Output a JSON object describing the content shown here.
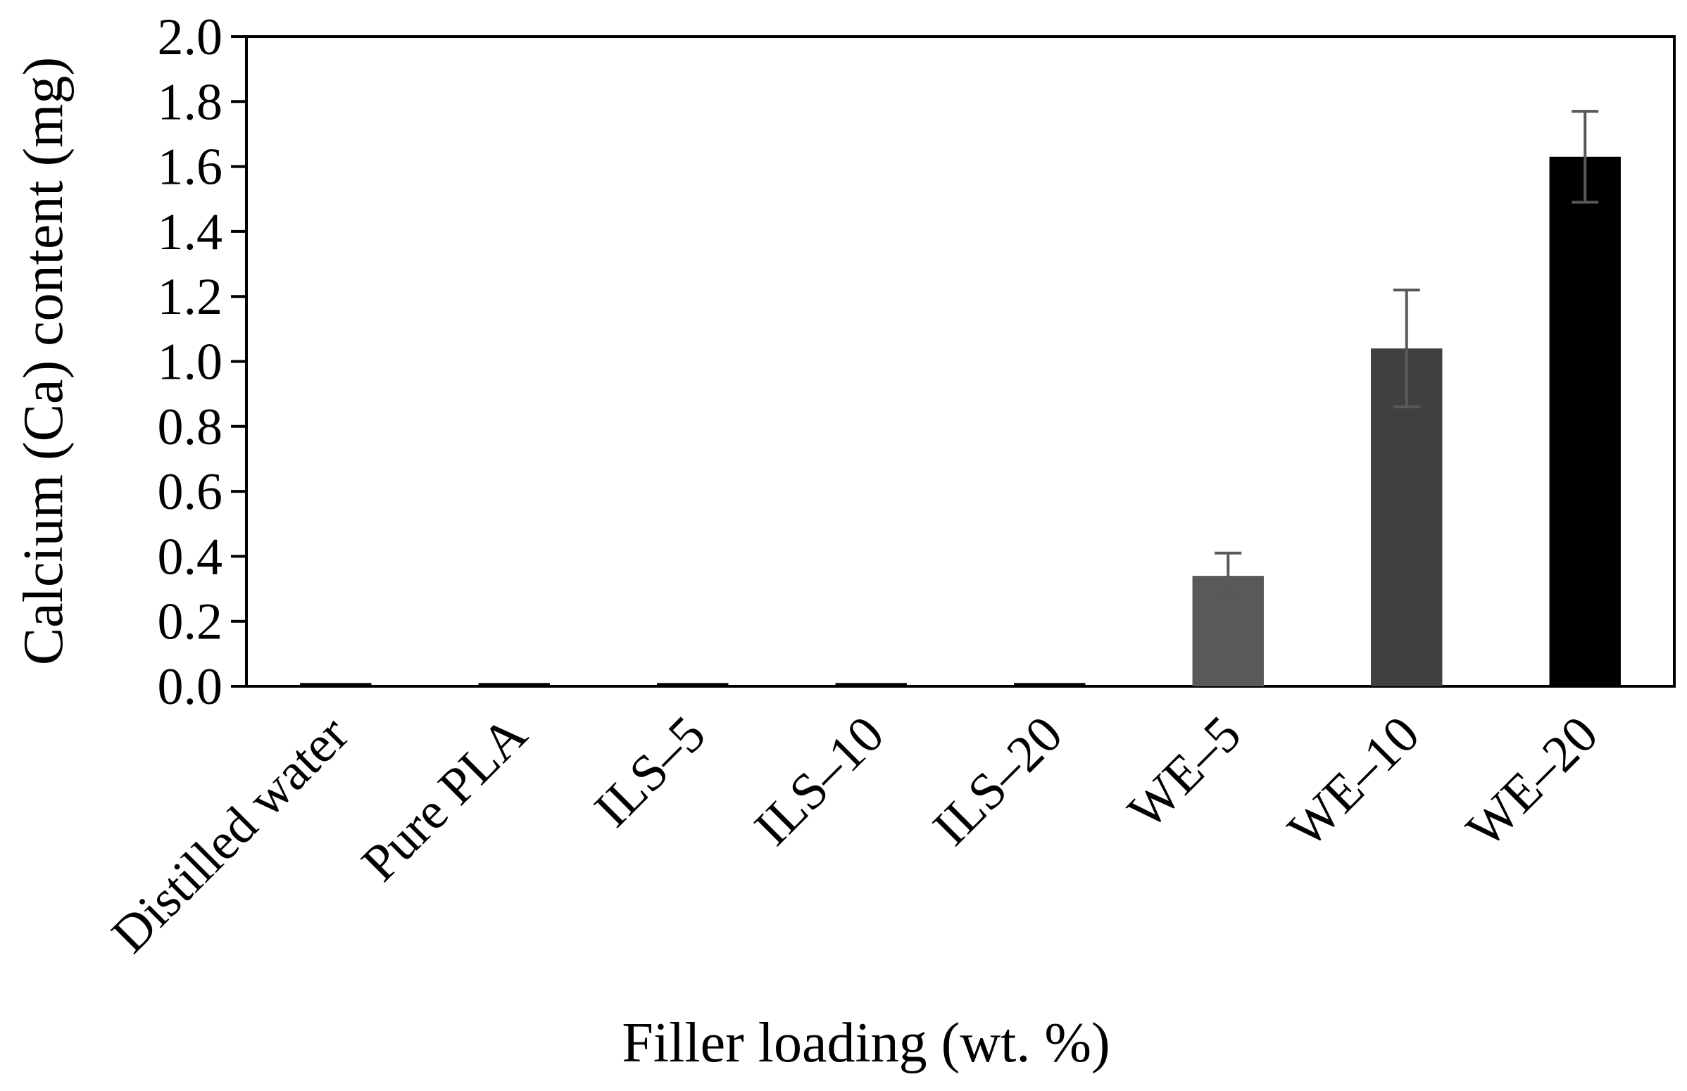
{
  "chart_data": {
    "type": "bar",
    "title": "",
    "xlabel": "Filler loading (wt. %)",
    "ylabel": "Calcium (Ca) content (mg)",
    "ylim": [
      0,
      2.0
    ],
    "yticks": [
      "0.0",
      "0.2",
      "0.4",
      "0.6",
      "0.8",
      "1.0",
      "1.2",
      "1.4",
      "1.6",
      "1.8",
      "2.0"
    ],
    "categories": [
      "Distilled water",
      "Pure PLA",
      "ILS–5",
      "ILS–10",
      "ILS–20",
      "WE–5",
      "WE–10",
      "WE–20"
    ],
    "values": [
      0.01,
      0.01,
      0.01,
      0.01,
      0.01,
      0.34,
      1.04,
      1.63
    ],
    "errors": [
      0,
      0,
      0,
      0,
      0,
      0.07,
      0.18,
      0.14
    ],
    "bar_colors": [
      "#000000",
      "#000000",
      "#000000",
      "#000000",
      "#000000",
      "#595959",
      "#404040",
      "#000000"
    ],
    "error_bar_color": "#595959",
    "grid": false,
    "legend": "none"
  }
}
